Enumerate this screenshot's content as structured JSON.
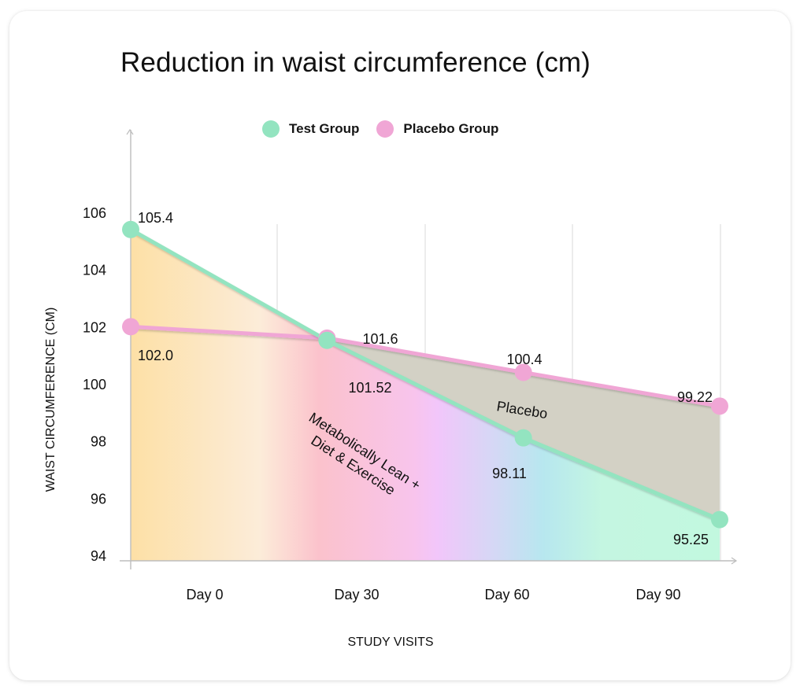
{
  "chart_data": {
    "type": "line",
    "title": "Reduction in waist circumference (cm)",
    "xlabel": "STUDY VISITS",
    "ylabel": "WAIST CIRCUMFERENCE (CM)",
    "categories": [
      "Day 0",
      "Day 30",
      "Day 60",
      "Day 90"
    ],
    "yticks": [
      94,
      96,
      98,
      100,
      102,
      104,
      106
    ],
    "ylim": [
      94,
      107.8
    ],
    "grid": "vertical",
    "legend_position": "top-center",
    "series": [
      {
        "name": "Test Group",
        "color": "#93e4c0",
        "values": [
          105.4,
          101.52,
          98.11,
          95.25
        ],
        "labels": [
          "105.4",
          "101.52",
          "98.11",
          "95.25"
        ]
      },
      {
        "name": "Placebo Group",
        "color": "#f0a6d5",
        "values": [
          102.0,
          101.6,
          100.4,
          99.22
        ],
        "labels": [
          "102.0",
          "101.6",
          "100.4",
          "99.22"
        ]
      }
    ],
    "annotations": [
      {
        "text_lines": [
          "Metabolically Lean +",
          "Diet & Exercise"
        ],
        "region": "under test group line"
      },
      {
        "text_lines": [
          "Placebo"
        ],
        "region": "between placebo and test lines"
      }
    ]
  }
}
